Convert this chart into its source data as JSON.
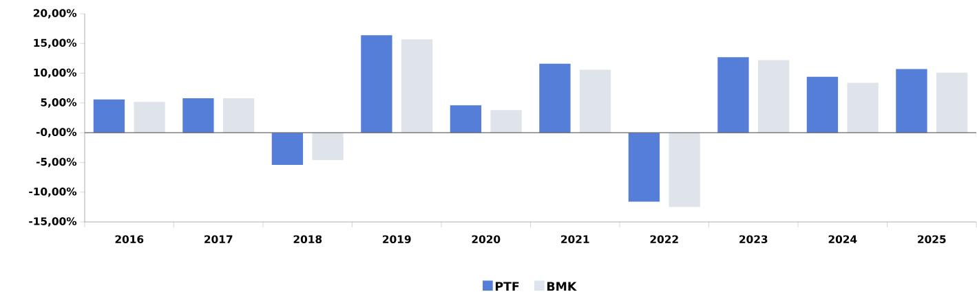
{
  "chart_data": {
    "type": "bar",
    "categories": [
      "2016",
      "2017",
      "2018",
      "2019",
      "2020",
      "2021",
      "2022",
      "2023",
      "2024",
      "2025"
    ],
    "series": [
      {
        "name": "PTF",
        "color": "#557ed9",
        "values": [
          5.6,
          5.8,
          -5.4,
          16.4,
          4.6,
          11.6,
          -11.6,
          12.7,
          9.4,
          10.7
        ]
      },
      {
        "name": "BMK",
        "color": "#dfe3ea",
        "values": [
          5.2,
          5.8,
          -4.6,
          15.7,
          3.8,
          10.6,
          -12.5,
          12.2,
          8.4,
          10.1
        ]
      }
    ],
    "ylim": [
      -15,
      20
    ],
    "yticks": [
      {
        "value": -15,
        "label": "-15,00%"
      },
      {
        "value": -10,
        "label": "-10,00%"
      },
      {
        "value": -5,
        "label": "-5,00%"
      },
      {
        "value": 0,
        "label": "-0,00%"
      },
      {
        "value": 5,
        "label": "5,00%"
      },
      {
        "value": 10,
        "label": "10,00%"
      },
      {
        "value": 15,
        "label": "15,00%"
      },
      {
        "value": 20,
        "label": "20,00%"
      }
    ],
    "legend": "bottom"
  }
}
